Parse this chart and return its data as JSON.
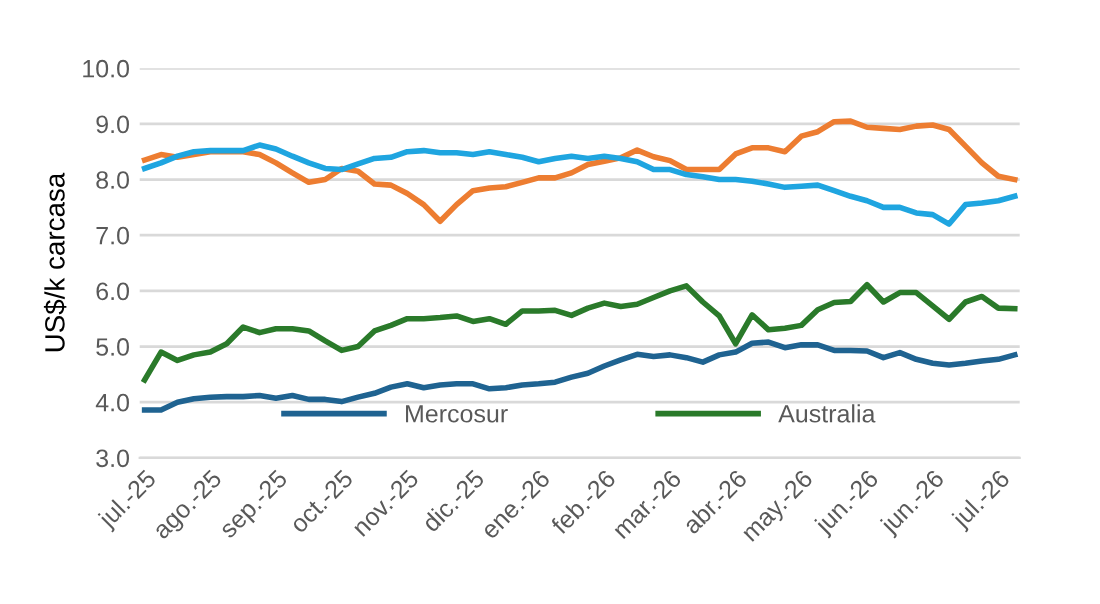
{
  "chart_data": {
    "type": "line",
    "ylabel": "US$/k carcasa",
    "categories": [
      "jul.-25",
      null,
      null,
      null,
      "ago.-25",
      null,
      null,
      null,
      "sep.-25",
      null,
      null,
      null,
      "oct.-25",
      null,
      null,
      null,
      "nov.-25",
      null,
      null,
      null,
      "dic.-25",
      null,
      null,
      null,
      "ene.-26",
      null,
      null,
      null,
      "feb.-26",
      null,
      null,
      null,
      "mar.-26",
      null,
      null,
      null,
      "abr.-26",
      null,
      null,
      null,
      "may.-26",
      null,
      null,
      null,
      "jun.-26",
      null,
      null,
      null,
      "jun.-26",
      null,
      null,
      null,
      "jul.-26",
      null
    ],
    "series": [
      {
        "color": "#ed7d31",
        "values": [
          8.35,
          8.45,
          8.4,
          8.45,
          8.5,
          8.5,
          8.5,
          8.45,
          8.3,
          8.12,
          7.95,
          8.0,
          8.2,
          8.15,
          7.92,
          7.9,
          7.75,
          7.55,
          7.25,
          7.55,
          7.8,
          7.85,
          7.87,
          7.95,
          8.03,
          8.03,
          8.12,
          8.27,
          8.33,
          8.39,
          8.53,
          8.41,
          8.34,
          8.18,
          8.18,
          8.18,
          8.46,
          8.57,
          8.57,
          8.5,
          8.78,
          8.86,
          9.04,
          9.05,
          8.94,
          8.92,
          8.9,
          8.96,
          8.98,
          8.9,
          8.6,
          8.3,
          8.06,
          8.0
        ]
      },
      {
        "color": "#1fa5e0",
        "values": [
          8.2,
          8.3,
          8.42,
          8.5,
          8.52,
          8.52,
          8.52,
          8.62,
          8.55,
          8.42,
          8.3,
          8.2,
          8.18,
          8.28,
          8.38,
          8.4,
          8.5,
          8.52,
          8.48,
          8.48,
          8.45,
          8.5,
          8.45,
          8.4,
          8.32,
          8.38,
          8.42,
          8.38,
          8.42,
          8.38,
          8.32,
          8.18,
          8.18,
          8.09,
          8.05,
          8.0,
          8.0,
          7.97,
          7.92,
          7.86,
          7.88,
          7.9,
          7.8,
          7.7,
          7.62,
          7.5,
          7.5,
          7.4,
          7.37,
          7.2,
          7.55,
          7.58,
          7.62,
          7.7
        ]
      },
      {
        "name": "Mercosur",
        "color": "#1f6391",
        "values": [
          3.86,
          3.86,
          4.0,
          4.06,
          4.09,
          4.1,
          4.1,
          4.12,
          4.07,
          4.12,
          4.05,
          4.05,
          4.01,
          4.09,
          4.16,
          4.27,
          4.33,
          4.26,
          4.31,
          4.33,
          4.33,
          4.24,
          4.26,
          4.31,
          4.33,
          4.36,
          4.45,
          4.52,
          4.65,
          4.76,
          4.86,
          4.82,
          4.85,
          4.8,
          4.72,
          4.85,
          4.9,
          5.06,
          5.08,
          4.98,
          5.03,
          5.03,
          4.93,
          4.93,
          4.92,
          4.8,
          4.89,
          4.77,
          4.7,
          4.67,
          4.7,
          4.74,
          4.77,
          4.85
        ]
      },
      {
        "name": "Australia",
        "color": "#2a7a2a",
        "values": [
          4.4,
          4.9,
          4.75,
          4.85,
          4.9,
          5.05,
          5.35,
          5.25,
          5.32,
          5.32,
          5.28,
          5.1,
          4.93,
          5.0,
          5.28,
          5.38,
          5.5,
          5.5,
          5.52,
          5.55,
          5.45,
          5.5,
          5.4,
          5.64,
          5.64,
          5.65,
          5.56,
          5.69,
          5.78,
          5.72,
          5.76,
          5.88,
          6.0,
          6.09,
          5.8,
          5.55,
          5.05,
          5.57,
          5.3,
          5.33,
          5.38,
          5.66,
          5.79,
          5.81,
          6.11,
          5.8,
          5.97,
          5.97,
          5.73,
          5.49,
          5.8,
          5.9,
          5.69,
          5.68
        ]
      }
    ],
    "ylim": [
      3,
      10
    ],
    "yticks": [
      {
        "value": 3,
        "label": "3.0"
      },
      {
        "value": 4,
        "label": "4.0"
      },
      {
        "value": 5,
        "label": "5.0"
      },
      {
        "value": 6,
        "label": "6.0"
      },
      {
        "value": 7,
        "label": "7.0"
      },
      {
        "value": 8,
        "label": "8.0"
      },
      {
        "value": 9,
        "label": "9.0"
      },
      {
        "value": 10,
        "label": "10.0"
      }
    ],
    "grid": "y",
    "legend": "bottom",
    "marker": "none",
    "line_style": "solid"
  }
}
